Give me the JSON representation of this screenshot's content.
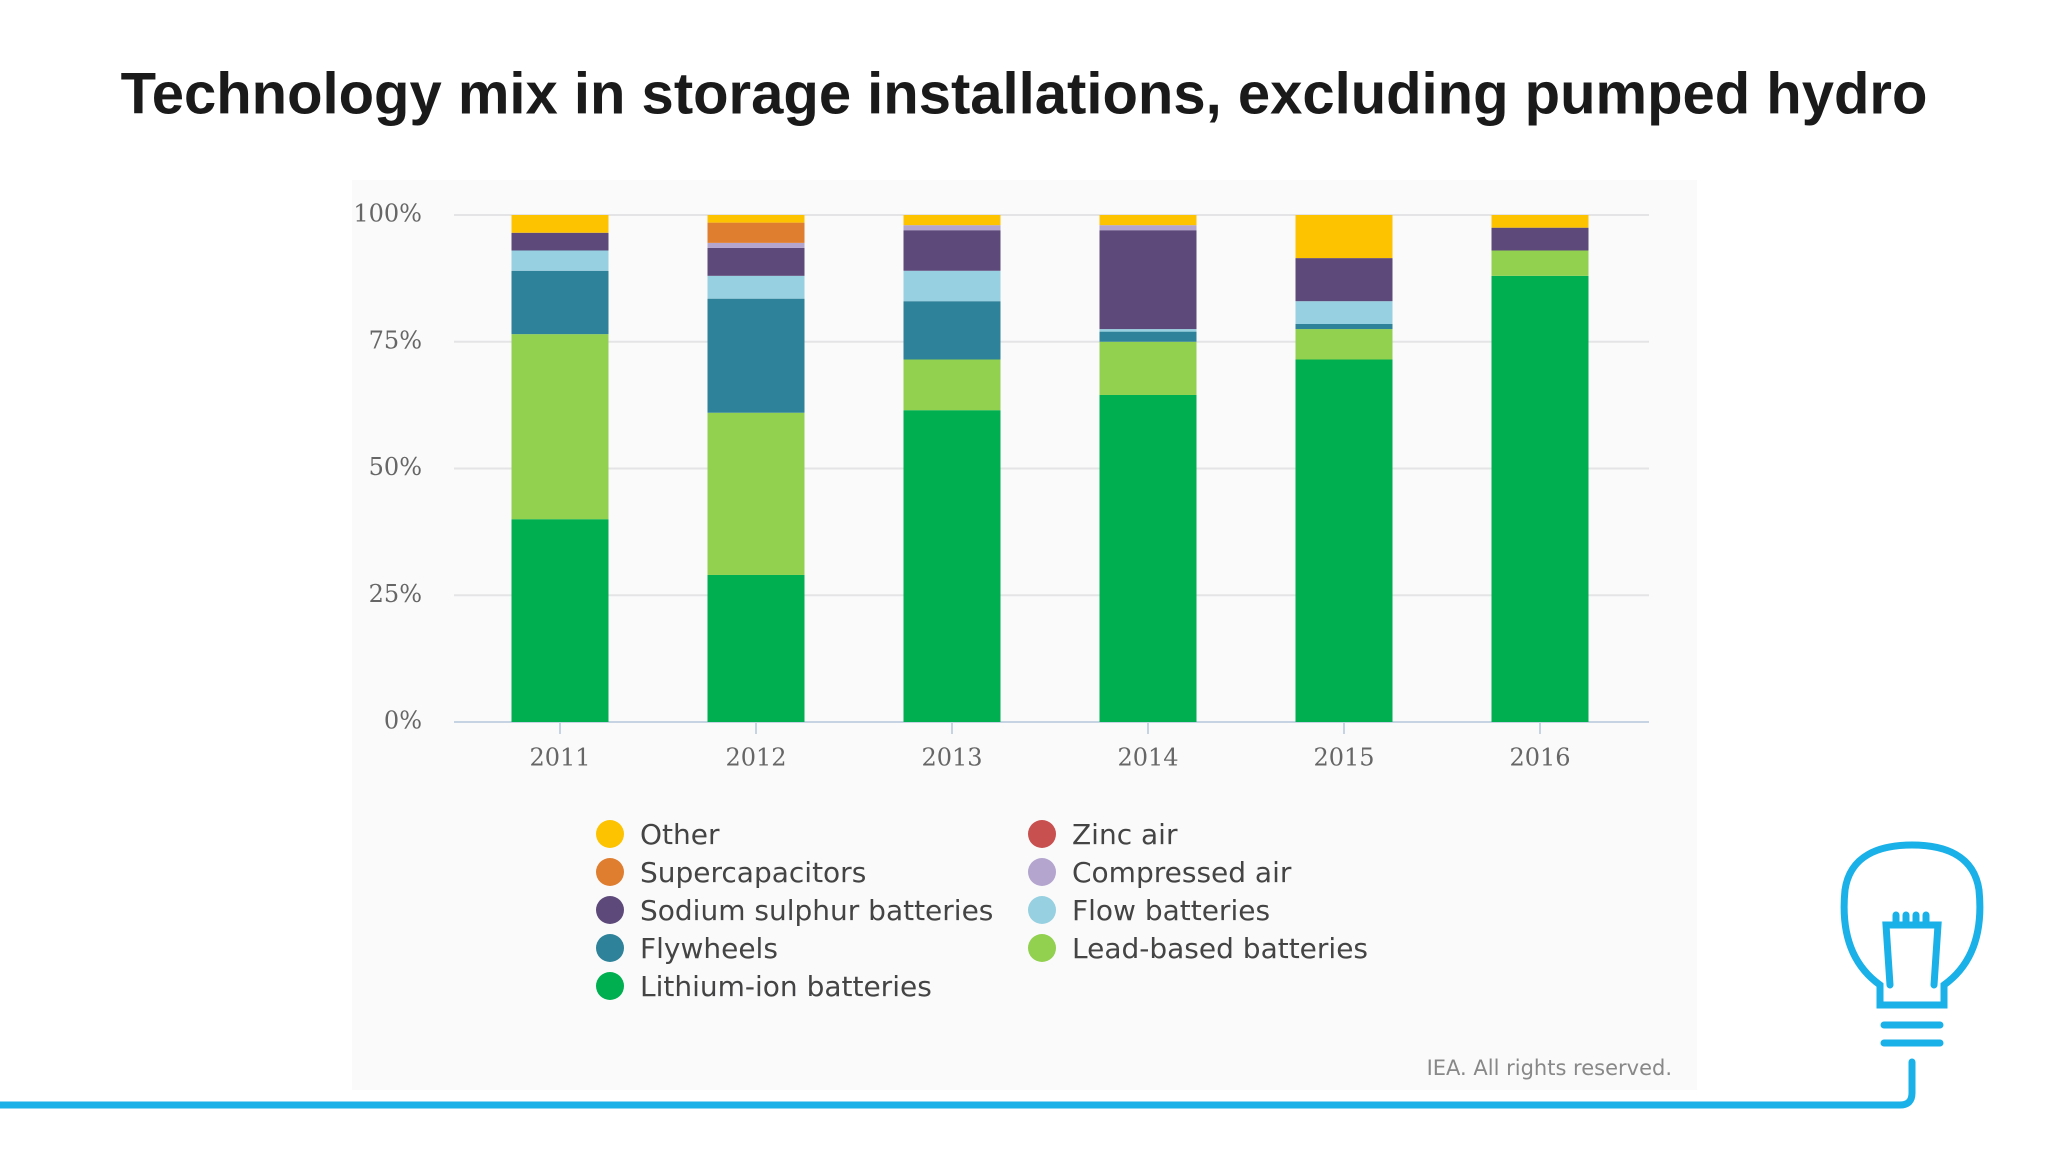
{
  "chart_data": {
    "type": "stacked_bar",
    "title": "Technology mix in storage installations, excluding pumped hydro",
    "categories": [
      "2011",
      "2012",
      "2013",
      "2014",
      "2015",
      "2016"
    ],
    "series": [
      {
        "name": "Lithium-ion batteries",
        "color": "#00AF50",
        "values": [
          40,
          29,
          61.5,
          64.5,
          71.5,
          88
        ]
      },
      {
        "name": "Lead-based batteries",
        "color": "#92D050",
        "values": [
          36.5,
          32,
          10,
          10.5,
          6,
          5
        ]
      },
      {
        "name": "Flywheels",
        "color": "#2E8299",
        "values": [
          12.5,
          22.5,
          11.5,
          2,
          1,
          0
        ]
      },
      {
        "name": "Flow batteries",
        "color": "#97D0E0",
        "values": [
          4,
          4.5,
          6,
          0.5,
          4.5,
          0
        ]
      },
      {
        "name": "Sodium sulphur batteries",
        "color": "#5E4A7A",
        "values": [
          3.5,
          5.5,
          8,
          19.5,
          8.5,
          4.5
        ]
      },
      {
        "name": "Compressed air",
        "color": "#B3A5CE",
        "values": [
          0,
          1,
          1,
          1,
          0,
          0
        ]
      },
      {
        "name": "Zinc air",
        "color": "#C8504F",
        "values": [
          0,
          0,
          0,
          0,
          0,
          0
        ]
      },
      {
        "name": "Supercapacitors",
        "color": "#E07E30",
        "values": [
          0,
          4,
          0,
          0,
          0,
          0
        ]
      },
      {
        "name": "Other",
        "color": "#FDC300",
        "values": [
          3.5,
          1.5,
          2,
          2,
          8.5,
          2.5
        ]
      }
    ],
    "ylim": [
      0,
      100
    ],
    "yticks": [
      {
        "value": 0,
        "label": "0%"
      },
      {
        "value": 25,
        "label": "25%"
      },
      {
        "value": 50,
        "label": "50%"
      },
      {
        "value": 75,
        "label": "75%"
      },
      {
        "value": 100,
        "label": "100%"
      }
    ],
    "grid": true,
    "source": "IEA. All rights reserved."
  }
}
